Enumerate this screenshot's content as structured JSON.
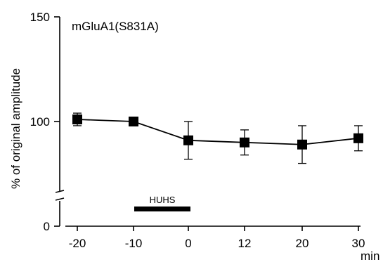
{
  "chart_data": {
    "type": "line",
    "title": "mGluA1(S831A)",
    "ylabel": "% of original amplitude",
    "xlabel": "min",
    "x_tick_labels": [
      "-20",
      "-10",
      "0",
      "12",
      "20",
      "30"
    ],
    "y_tick_labels": [
      "0",
      "100",
      "150"
    ],
    "ylim": [
      0,
      150
    ],
    "y_axis_break": true,
    "grid": false,
    "legend": "none",
    "series": [
      {
        "x": [
          "-20",
          "-10",
          "0",
          "12",
          "20",
          "30"
        ],
        "values": [
          101,
          100,
          91,
          90,
          89,
          92
        ],
        "error": [
          3,
          0,
          9,
          6,
          9,
          6
        ],
        "marker": "square",
        "color": "#000000"
      }
    ],
    "annotations": [
      {
        "text": "HUHS",
        "bar_from": "-10",
        "bar_to": "0"
      }
    ]
  }
}
